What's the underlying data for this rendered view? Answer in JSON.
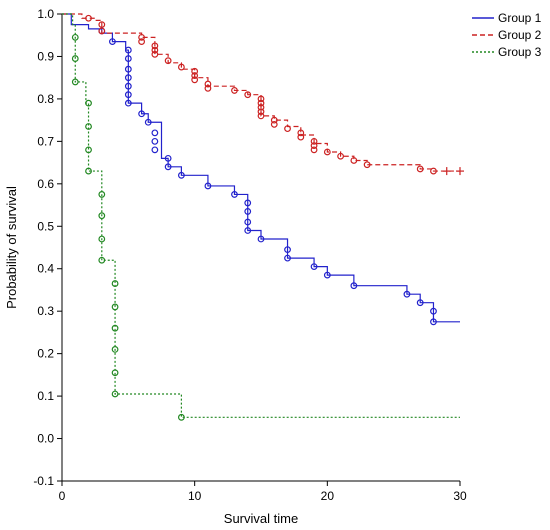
{
  "chart_data": {
    "type": "line",
    "title": "",
    "xlabel": "Survival time",
    "ylabel": "Probability of survival",
    "xlim": [
      0,
      30
    ],
    "ylim": [
      -0.1,
      1.0
    ],
    "xticks": [
      0,
      10,
      20,
      30
    ],
    "xtick_labels": [
      "0",
      "10",
      "20",
      "30"
    ],
    "yticks": [
      -0.1,
      0.0,
      0.1,
      0.2,
      0.3,
      0.4,
      0.5,
      0.6,
      0.7,
      0.8,
      0.9,
      1.0
    ],
    "ytick_labels": [
      "-0.1",
      "0.0",
      "0.1",
      "0.2",
      "0.3",
      "0.4",
      "0.5",
      "0.6",
      "0.7",
      "0.8",
      "0.9",
      "1.0"
    ],
    "grid": false,
    "legend_position": "top-right",
    "series": [
      {
        "name": "Group 1",
        "color": "#2222cc",
        "dash": "solid",
        "steps": [
          [
            0,
            1.0
          ],
          [
            0.7,
            0.975
          ],
          [
            2,
            0.965
          ],
          [
            3,
            0.955
          ],
          [
            3.8,
            0.935
          ],
          [
            4.8,
            0.915
          ],
          [
            5,
            0.79
          ],
          [
            6,
            0.765
          ],
          [
            6.5,
            0.745
          ],
          [
            7.5,
            0.66
          ],
          [
            8,
            0.64
          ],
          [
            9,
            0.62
          ],
          [
            11,
            0.595
          ],
          [
            13,
            0.575
          ],
          [
            14,
            0.49
          ],
          [
            15,
            0.47
          ],
          [
            17,
            0.425
          ],
          [
            19,
            0.405
          ],
          [
            20,
            0.385
          ],
          [
            22,
            0.36
          ],
          [
            26,
            0.34
          ],
          [
            27,
            0.32
          ],
          [
            28,
            0.275
          ],
          [
            30,
            0.275
          ]
        ],
        "censored": [
          [
            3,
            0.96
          ],
          [
            3.8,
            0.935
          ],
          [
            5,
            0.915
          ],
          [
            5,
            0.895
          ],
          [
            5,
            0.87
          ],
          [
            5,
            0.85
          ],
          [
            5,
            0.83
          ],
          [
            5,
            0.81
          ],
          [
            5,
            0.79
          ],
          [
            6,
            0.765
          ],
          [
            6.5,
            0.745
          ],
          [
            7,
            0.72
          ],
          [
            7,
            0.7
          ],
          [
            7,
            0.68
          ],
          [
            8,
            0.66
          ],
          [
            8,
            0.64
          ],
          [
            9,
            0.62
          ],
          [
            11,
            0.595
          ],
          [
            13,
            0.575
          ],
          [
            14,
            0.555
          ],
          [
            14,
            0.535
          ],
          [
            14,
            0.51
          ],
          [
            14,
            0.49
          ],
          [
            15,
            0.47
          ],
          [
            17,
            0.445
          ],
          [
            17,
            0.425
          ],
          [
            19,
            0.405
          ],
          [
            20,
            0.385
          ],
          [
            22,
            0.36
          ],
          [
            26,
            0.34
          ],
          [
            27,
            0.32
          ],
          [
            28,
            0.3
          ],
          [
            28,
            0.275
          ]
        ]
      },
      {
        "name": "Group 2",
        "color": "#cc2222",
        "dash": "dashed",
        "steps": [
          [
            0,
            1.0
          ],
          [
            1.5,
            0.99
          ],
          [
            2.5,
            0.985
          ],
          [
            3,
            0.955
          ],
          [
            6,
            0.945
          ],
          [
            7,
            0.905
          ],
          [
            8,
            0.885
          ],
          [
            9,
            0.87
          ],
          [
            10,
            0.85
          ],
          [
            11,
            0.83
          ],
          [
            13,
            0.82
          ],
          [
            14,
            0.81
          ],
          [
            15,
            0.76
          ],
          [
            16,
            0.75
          ],
          [
            17,
            0.735
          ],
          [
            18,
            0.715
          ],
          [
            19,
            0.695
          ],
          [
            20,
            0.675
          ],
          [
            21,
            0.665
          ],
          [
            22,
            0.655
          ],
          [
            23,
            0.645
          ],
          [
            27,
            0.635
          ],
          [
            28,
            0.63
          ],
          [
            30,
            0.63
          ]
        ],
        "censored": [
          [
            2,
            0.99
          ],
          [
            3,
            0.975
          ],
          [
            3,
            0.96
          ],
          [
            6,
            0.945
          ],
          [
            6,
            0.935
          ],
          [
            7,
            0.925
          ],
          [
            7,
            0.915
          ],
          [
            7,
            0.905
          ],
          [
            8,
            0.89
          ],
          [
            9,
            0.875
          ],
          [
            10,
            0.865
          ],
          [
            10,
            0.855
          ],
          [
            10,
            0.845
          ],
          [
            11,
            0.835
          ],
          [
            11,
            0.825
          ],
          [
            13,
            0.82
          ],
          [
            14,
            0.81
          ],
          [
            15,
            0.8
          ],
          [
            15,
            0.79
          ],
          [
            15,
            0.78
          ],
          [
            15,
            0.77
          ],
          [
            15,
            0.76
          ],
          [
            16,
            0.75
          ],
          [
            16,
            0.74
          ],
          [
            17,
            0.73
          ],
          [
            18,
            0.72
          ],
          [
            18,
            0.71
          ],
          [
            19,
            0.7
          ],
          [
            19,
            0.69
          ],
          [
            19,
            0.68
          ],
          [
            20,
            0.675
          ],
          [
            21,
            0.665
          ],
          [
            22,
            0.655
          ],
          [
            23,
            0.645
          ],
          [
            27,
            0.635
          ],
          [
            28,
            0.63
          ]
        ],
        "censored_cross": [
          [
            29,
            0.63
          ],
          [
            30,
            0.63
          ]
        ]
      },
      {
        "name": "Group 3",
        "color": "#228822",
        "dash": "dotted",
        "steps": [
          [
            0,
            1.0
          ],
          [
            0.8,
            0.975
          ],
          [
            1,
            0.945
          ],
          [
            1,
            0.84
          ],
          [
            1.8,
            0.79
          ],
          [
            2,
            0.735
          ],
          [
            2,
            0.63
          ],
          [
            2.7,
            0.63
          ],
          [
            3,
            0.575
          ],
          [
            3,
            0.42
          ],
          [
            4,
            0.365
          ],
          [
            4,
            0.105
          ],
          [
            9,
            0.05
          ],
          [
            30,
            0.05
          ]
        ],
        "censored": [
          [
            1,
            0.945
          ],
          [
            1,
            0.895
          ],
          [
            1,
            0.84
          ],
          [
            2,
            0.79
          ],
          [
            2,
            0.735
          ],
          [
            2,
            0.68
          ],
          [
            2,
            0.63
          ],
          [
            3,
            0.575
          ],
          [
            3,
            0.525
          ],
          [
            3,
            0.47
          ],
          [
            3,
            0.42
          ],
          [
            4,
            0.365
          ],
          [
            4,
            0.31
          ],
          [
            4,
            0.26
          ],
          [
            4,
            0.21
          ],
          [
            4,
            0.155
          ],
          [
            4,
            0.105
          ],
          [
            9,
            0.05
          ]
        ]
      }
    ]
  }
}
